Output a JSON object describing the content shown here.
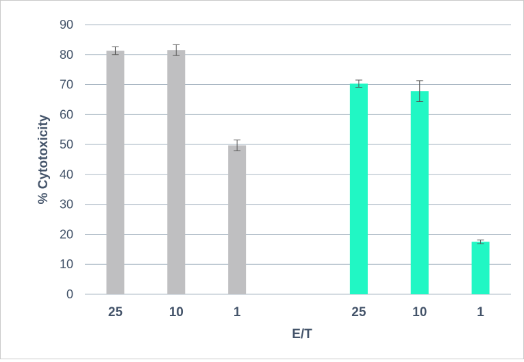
{
  "chart_data": {
    "type": "bar",
    "title": "",
    "xlabel": "E/T",
    "ylabel": "% Cytotoxicity",
    "ylim": [
      0,
      90
    ],
    "yticks": [
      0,
      10,
      20,
      30,
      40,
      50,
      60,
      70,
      80,
      90
    ],
    "grid": true,
    "categories": [
      "25",
      "10",
      "1",
      "25",
      "10",
      "1"
    ],
    "values": [
      81.3,
      81.5,
      49.7,
      70.3,
      67.8,
      17.5
    ],
    "errors": [
      1.3,
      1.8,
      1.8,
      1.2,
      3.5,
      0.6
    ],
    "bar_colors": [
      "#bfbfc1",
      "#bfbfc1",
      "#bfbfc1",
      "#21f7c4",
      "#21f7c4",
      "#21f7c4"
    ],
    "colors": {
      "grid": "#a9b7c3",
      "axis_text": "#44546a",
      "error_bar": "#555555"
    }
  }
}
